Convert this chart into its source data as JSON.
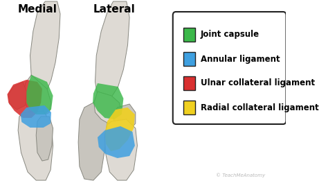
{
  "title_left": "Medial",
  "title_right": "Lateral",
  "legend_items": [
    {
      "label": "Joint capsule",
      "color": "#3cb84a"
    },
    {
      "label": "Annular ligament",
      "color": "#3fa0e0"
    },
    {
      "label": "Ulnar collateral ligament",
      "color": "#d93030"
    },
    {
      "label": "Radial collateral ligament",
      "color": "#f0d020"
    }
  ],
  "background_color": "#ffffff",
  "watermark": "© TeachMeAnatomy",
  "legend_box_color": "#ffffff",
  "legend_box_edge": "#222222",
  "title_fontsize": 11,
  "legend_fontsize": 8.5,
  "bone_color": "#c8c5be",
  "bone_edge": "#888880",
  "bone_color2": "#dedad4"
}
